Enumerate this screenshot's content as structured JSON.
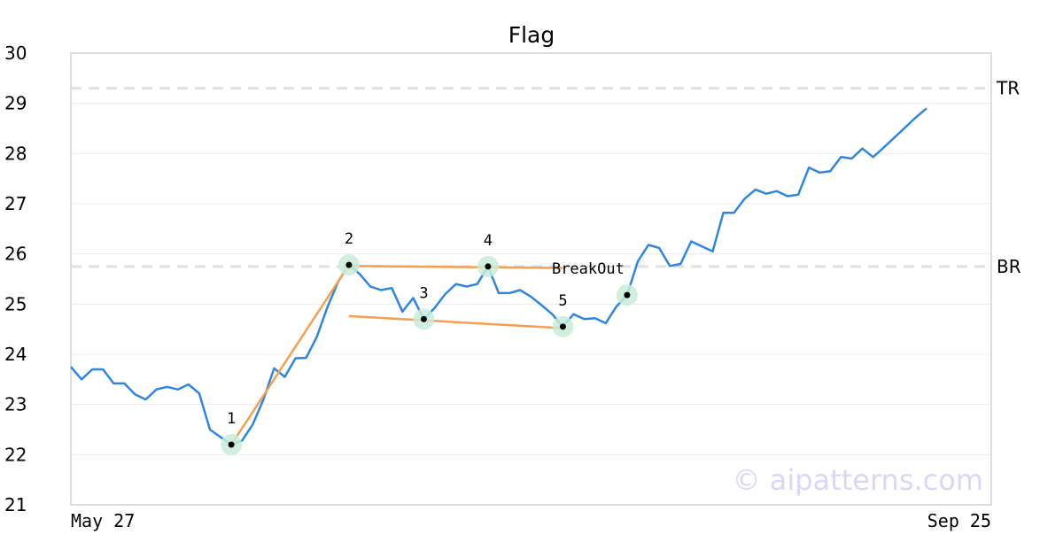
{
  "chart_data": {
    "type": "line",
    "title": "Flag",
    "xlabel": "",
    "ylabel": "",
    "ylim": [
      21,
      30
    ],
    "y_ticks": [
      21,
      22,
      23,
      24,
      25,
      26,
      27,
      28,
      29,
      30
    ],
    "x_tick_labels": [
      "May 27",
      "Sep 25"
    ],
    "grid": "horizontal",
    "series": [
      {
        "color": "#2e86de",
        "values": [
          23.75,
          23.5,
          23.7,
          23.7,
          23.42,
          23.42,
          23.2,
          23.1,
          23.3,
          23.35,
          23.3,
          23.4,
          23.22,
          22.5,
          22.35,
          22.2,
          22.28,
          22.6,
          23.1,
          23.72,
          23.55,
          23.92,
          23.93,
          24.35,
          24.95,
          25.45,
          25.78,
          25.6,
          25.35,
          25.28,
          25.32,
          24.85,
          25.12,
          24.7,
          24.92,
          25.2,
          25.4,
          25.35,
          25.4,
          25.75,
          25.22,
          25.22,
          25.28,
          25.15,
          24.98,
          24.8,
          24.55,
          24.8,
          24.7,
          24.72,
          24.62,
          24.95,
          25.18,
          25.85,
          26.18,
          26.12,
          25.76,
          25.8,
          26.25,
          26.15,
          26.05,
          26.82,
          26.82,
          27.1,
          27.28,
          27.2,
          27.25,
          27.15,
          27.18,
          27.72,
          27.62,
          27.65,
          27.93,
          27.9,
          28.1,
          27.93,
          28.12,
          28.32,
          28.52,
          28.72,
          28.9
        ]
      }
    ],
    "pattern_points": [
      {
        "label": "1",
        "index": 15,
        "value": 22.2
      },
      {
        "label": "2",
        "index": 26,
        "value": 25.78
      },
      {
        "label": "3",
        "index": 33,
        "value": 24.7
      },
      {
        "label": "4",
        "index": 39,
        "value": 25.75
      },
      {
        "label": "5",
        "index": 46,
        "value": 24.55
      },
      {
        "label": "BreakOut",
        "index": 52,
        "value": 25.18
      }
    ],
    "pattern_lines": [
      {
        "color": "#f4a050",
        "from": {
          "index": 15,
          "value": 22.2
        },
        "to": {
          "index": 26,
          "value": 25.78
        }
      },
      {
        "color": "#f4a050",
        "from": {
          "index": 26,
          "value": 25.76
        },
        "to": {
          "index": 46,
          "value": 25.72
        }
      },
      {
        "color": "#f4a050",
        "from": {
          "index": 26,
          "value": 24.76
        },
        "to": {
          "index": 46,
          "value": 24.52
        }
      }
    ],
    "reference_lines": [
      {
        "label": "TR",
        "value": 29.3
      },
      {
        "label": "BR",
        "value": 25.75
      }
    ],
    "marker_halo_color": "#c8ecd8",
    "reference_line_color": "#e0e0e0",
    "watermark": "© aipatterns.com"
  }
}
